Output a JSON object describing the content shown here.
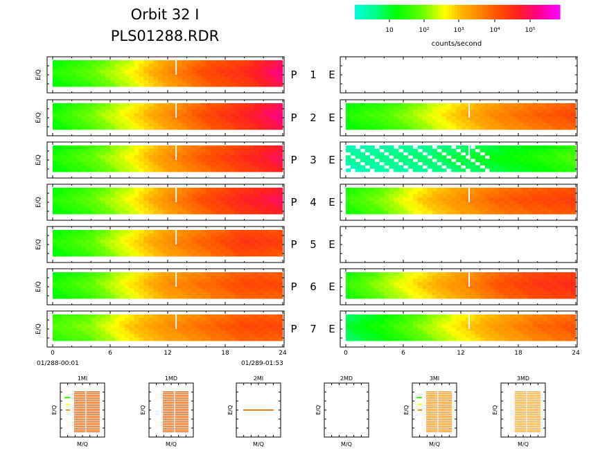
{
  "header": {
    "title_line1": "Orbit  32  I",
    "title_line2": "PLS01288.RDR"
  },
  "colorbar": {
    "label": "counts/second",
    "tick_labels": [
      "10",
      "10²",
      "10³",
      "10⁴",
      "10⁵"
    ],
    "colors": [
      "#00ffd8",
      "#00ff80",
      "#40ff00",
      "#b0ff00",
      "#ffff00",
      "#ffb000",
      "#ff7000",
      "#ff2020",
      "#ff0090",
      "#ff00ff"
    ]
  },
  "chart_data": {
    "type": "heatmap",
    "y_axis_label": "E/Q",
    "x_ticks": [
      "0",
      "6",
      "12",
      "18",
      "24"
    ],
    "x_range_hours": [
      0,
      24
    ],
    "time_start": "01/288-00:01",
    "time_end": "01/289-01:53",
    "colorscale": "log counts/second",
    "panels": [
      {
        "id": 1,
        "p_label": "P",
        "num": "1",
        "e_label": "E",
        "p_levels": [
          1.2,
          1.6,
          2.2,
          3.0,
          3.6,
          3.9,
          4.5
        ],
        "e_levels": null
      },
      {
        "id": 2,
        "p_levels": [
          1.2,
          1.7,
          2.3,
          3.0,
          3.6,
          4.0,
          4.5
        ],
        "e_levels": [
          1.2,
          1.5,
          2.0,
          2.6,
          3.1,
          3.4,
          3.6
        ]
      },
      {
        "id": 3,
        "p_levels": [
          1.2,
          1.6,
          2.2,
          3.0,
          3.5,
          3.9,
          4.3
        ],
        "e_levels": [
          0.4,
          0.5,
          0.6,
          0.8,
          1.0,
          1.2,
          1.5
        ]
      },
      {
        "id": 4,
        "p_levels": [
          1.2,
          1.6,
          2.2,
          3.0,
          3.6,
          4.0,
          4.3
        ],
        "e_levels": [
          1.3,
          1.8,
          2.5,
          3.0,
          3.4,
          3.6,
          3.7
        ]
      },
      {
        "id": 5,
        "p_levels": [
          1.2,
          1.6,
          2.3,
          3.0,
          3.4,
          3.8,
          3.7
        ],
        "e_levels": null
      },
      {
        "id": 6,
        "p_levels": [
          1.2,
          1.6,
          2.3,
          3.0,
          3.3,
          3.6,
          3.6
        ],
        "e_levels": [
          1.3,
          1.9,
          2.5,
          3.0,
          3.5,
          3.8,
          3.9
        ]
      },
      {
        "id": 7,
        "p_levels": [
          1.5,
          1.8,
          2.5,
          3.0,
          3.3,
          3.6,
          3.6
        ],
        "e_levels": [
          0.8,
          1.2,
          1.8,
          2.4,
          2.9,
          3.3,
          3.5
        ]
      }
    ],
    "mq_panels": [
      {
        "title": "1MI",
        "xlabel": "M/Q",
        "ylabel": "E/Q",
        "fill": "dense",
        "color": "#f07020"
      },
      {
        "title": "1MD",
        "xlabel": "M/Q",
        "ylabel": "E/Q",
        "fill": "dense",
        "color": "#f07020"
      },
      {
        "title": "2MI",
        "xlabel": "M/Q",
        "ylabel": "E/Q",
        "fill": "line",
        "color": "#f08020"
      },
      {
        "title": "2MD",
        "xlabel": "M/Q",
        "ylabel": "E/Q",
        "fill": "empty",
        "color": "#ffffff"
      },
      {
        "title": "3MI",
        "xlabel": "M/Q",
        "ylabel": "E/Q",
        "fill": "dense",
        "color": "#ffa030"
      },
      {
        "title": "3MD",
        "xlabel": "M/Q",
        "ylabel": "E/Q",
        "fill": "dense",
        "color": "#ffb040"
      }
    ]
  }
}
